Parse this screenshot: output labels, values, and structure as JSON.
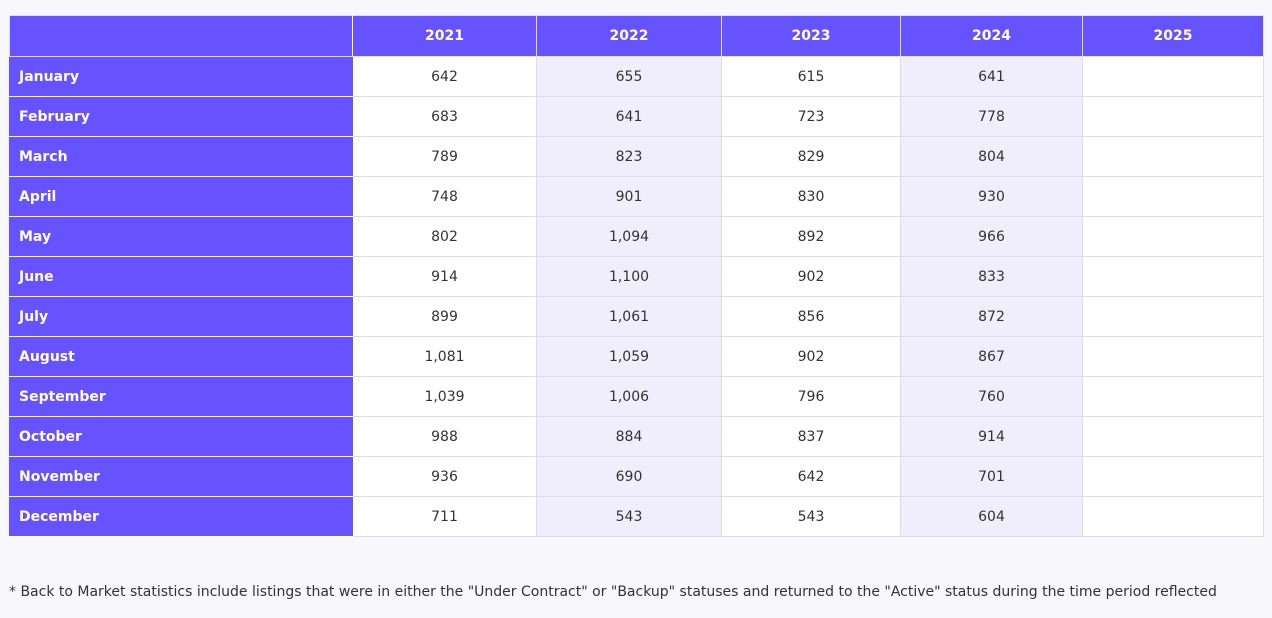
{
  "table": {
    "corner_label": "",
    "years": [
      "2021",
      "2022",
      "2023",
      "2024",
      "2025"
    ],
    "rows": [
      {
        "month": "January",
        "values": [
          "642",
          "655",
          "615",
          "641",
          ""
        ]
      },
      {
        "month": "February",
        "values": [
          "683",
          "641",
          "723",
          "778",
          ""
        ]
      },
      {
        "month": "March",
        "values": [
          "789",
          "823",
          "829",
          "804",
          ""
        ]
      },
      {
        "month": "April",
        "values": [
          "748",
          "901",
          "830",
          "930",
          ""
        ]
      },
      {
        "month": "May",
        "values": [
          "802",
          "1,094",
          "892",
          "966",
          ""
        ]
      },
      {
        "month": "June",
        "values": [
          "914",
          "1,100",
          "902",
          "833",
          ""
        ]
      },
      {
        "month": "July",
        "values": [
          "899",
          "1,061",
          "856",
          "872",
          ""
        ]
      },
      {
        "month": "August",
        "values": [
          "1,081",
          "1,059",
          "902",
          "867",
          ""
        ]
      },
      {
        "month": "September",
        "values": [
          "1,039",
          "1,006",
          "796",
          "760",
          ""
        ]
      },
      {
        "month": "October",
        "values": [
          "988",
          "884",
          "837",
          "914",
          ""
        ]
      },
      {
        "month": "November",
        "values": [
          "936",
          "690",
          "642",
          "701",
          ""
        ]
      },
      {
        "month": "December",
        "values": [
          "711",
          "543",
          "543",
          "604",
          ""
        ]
      }
    ]
  },
  "footnote": "* Back to Market statistics include listings that were in either the \"Under Contract\" or \"Backup\" statuses and returned to the \"Active\" status during the time period reflected",
  "colors": {
    "header_bg": "#6653ff",
    "header_text": "#ffffff",
    "shaded_column_bg": "#f0eefd",
    "page_bg": "#f7f7fc"
  }
}
